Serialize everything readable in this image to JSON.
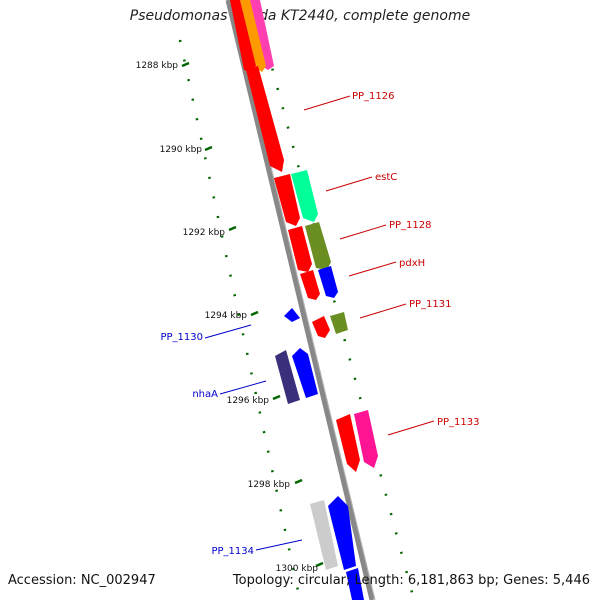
{
  "title": "Pseudomonas putida KT2440, complete genome",
  "footer": {
    "accession": "Accession: NC_002947",
    "topology": "Topology: circular; Length: 6,181,863 bp; Genes: 5,446"
  },
  "ticks": [
    "1288 kbp",
    "1290 kbp",
    "1292 kbp",
    "1294 kbp",
    "1296 kbp",
    "1298 kbp",
    "1300 kbp"
  ],
  "gene_labels": {
    "pp1126": "PP_1126",
    "estC": "estC",
    "pp1128": "PP_1128",
    "pdxH": "pdxH",
    "pp1131": "PP_1131",
    "pp1130": "PP_1130",
    "nhaA": "nhaA",
    "pp1133": "PP_1133",
    "pp1134": "PP_1134"
  },
  "colors": {
    "red": "#ff0000",
    "green": "#00ff99",
    "olive": "#6b8e23",
    "blue": "#0000ff",
    "navy": "#3a2f7a",
    "magenta": "#ff1493",
    "orange": "#ff9900",
    "grey": "#cccccc",
    "backbone": "#888888",
    "tick": "#006600",
    "label_red": "#cc0000",
    "label_blue": "#0000cc"
  }
}
